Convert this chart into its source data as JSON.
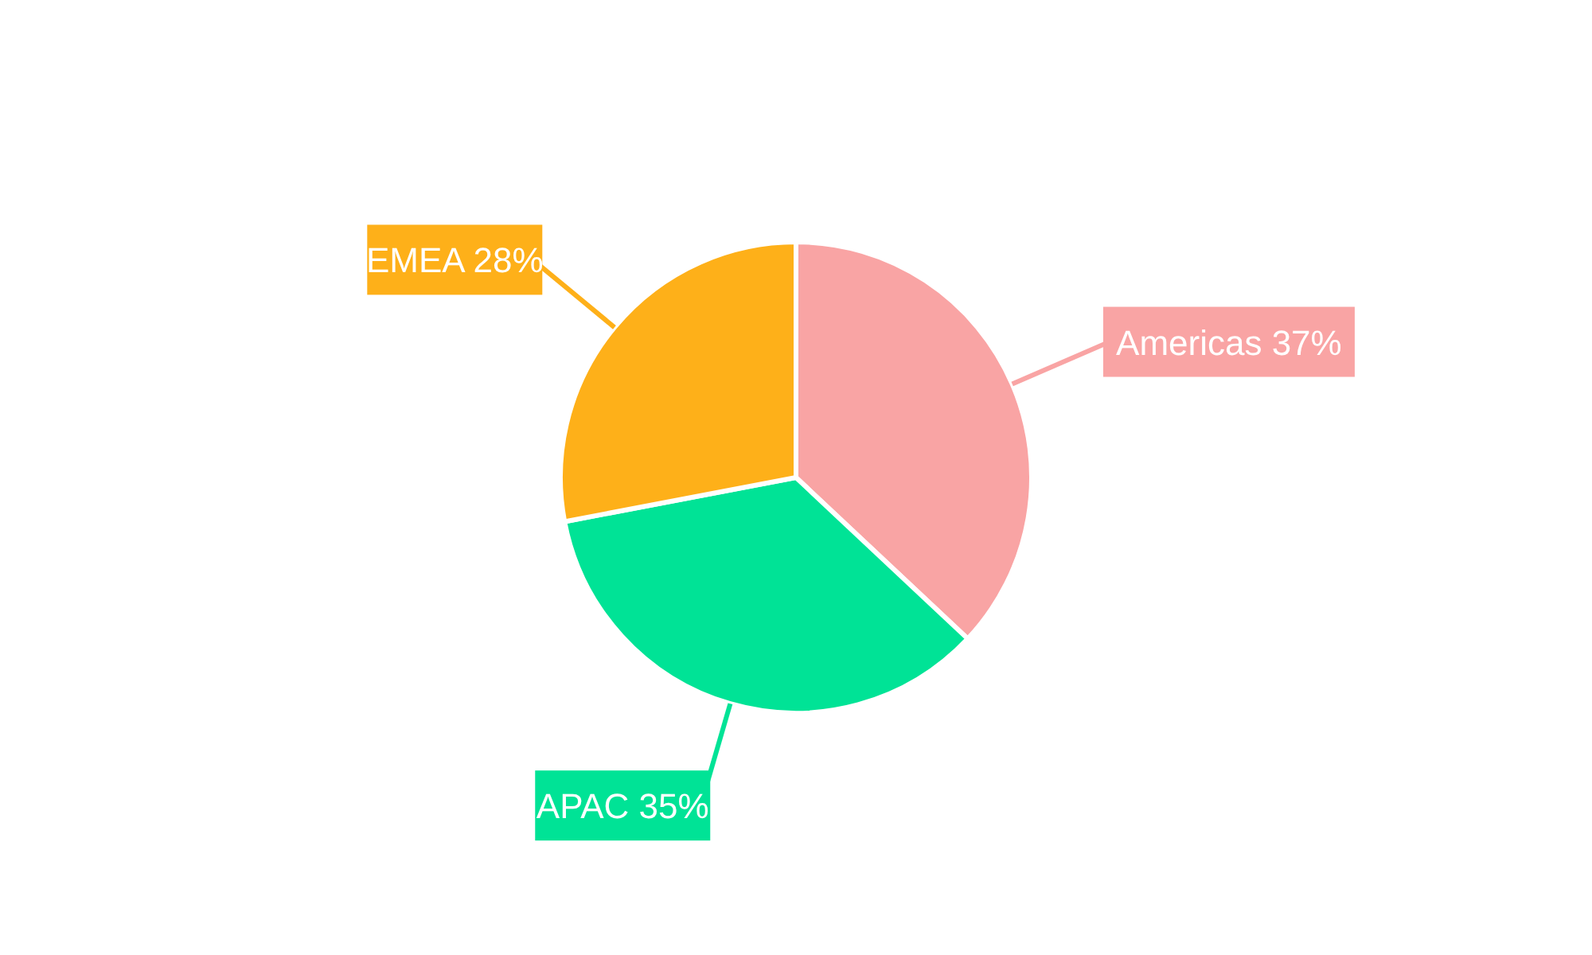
{
  "chart_data": {
    "type": "pie",
    "categories": [
      "Americas",
      "APAC",
      "EMEA"
    ],
    "values": [
      37,
      35,
      28
    ],
    "colors": [
      "#f9a4a4",
      "#00e396",
      "#feb019"
    ],
    "value_labels": [
      "37%",
      "35%",
      "28%"
    ]
  }
}
